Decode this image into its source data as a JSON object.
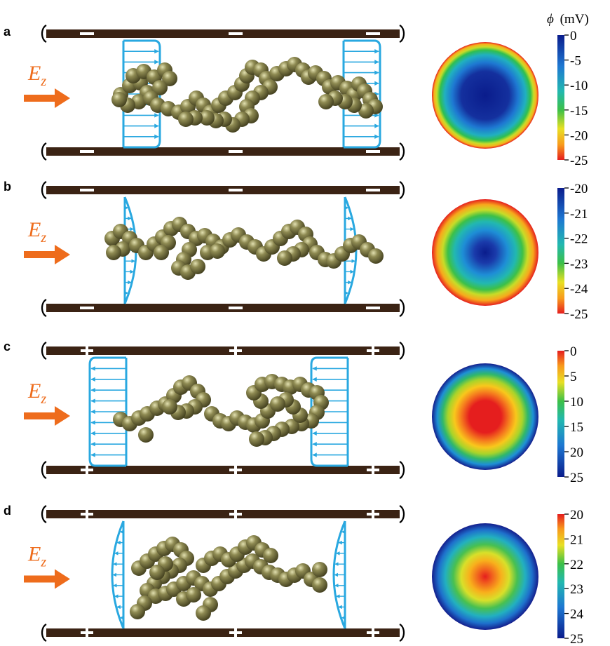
{
  "figure": {
    "colorbar_unit": {
      "symbol": "ϕ",
      "unit": "(mV)"
    },
    "field_label": {
      "main": "E",
      "sub": "z"
    },
    "colors": {
      "wall": "#3b2314",
      "flow_profile": "#29a8e0",
      "arrow": "#ee6c1c",
      "bead": "#7a7640",
      "bead_highlight": "#d8d6a0"
    },
    "panels": [
      {
        "letter": "a",
        "wall_mark": "dash",
        "flow_profile": "plug",
        "flow_direction": "right",
        "colormap_reversed": false,
        "colorbar_ticks": [
          "0",
          "-5",
          "-10",
          "-15",
          "-20",
          "-25"
        ]
      },
      {
        "letter": "b",
        "wall_mark": "dash",
        "flow_profile": "parabolic",
        "flow_direction": "right",
        "colormap_reversed": false,
        "colorbar_ticks": [
          "-20",
          "-21",
          "-22",
          "-23",
          "-24",
          "-25"
        ]
      },
      {
        "letter": "c",
        "wall_mark": "plus",
        "flow_profile": "plug",
        "flow_direction": "left",
        "colormap_reversed": true,
        "colorbar_ticks": [
          "0",
          "5",
          "10",
          "15",
          "20",
          "25"
        ]
      },
      {
        "letter": "d",
        "wall_mark": "plus",
        "flow_profile": "parabolic",
        "flow_direction": "left",
        "colormap_reversed": true,
        "colorbar_ticks": [
          "20",
          "21",
          "22",
          "23",
          "24",
          "25"
        ]
      }
    ]
  }
}
